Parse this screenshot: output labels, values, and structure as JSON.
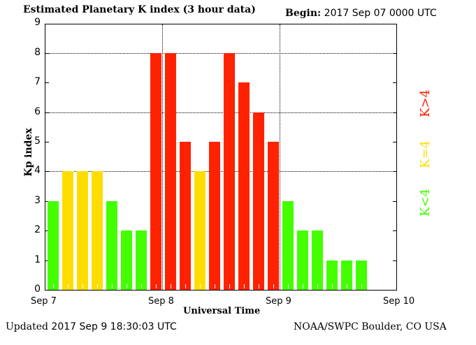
{
  "header": {
    "title": "Estimated Planetary K index (3 hour data)",
    "begin_label": "Begin:",
    "begin_value": "2017 Sep 07 0000 UTC"
  },
  "footer": {
    "updated_label": "Updated",
    "updated_value": "2017 Sep  9 18:30:03 UTC",
    "source": "NOAA/SWPC Boulder, CO USA"
  },
  "legend": {
    "high": {
      "label": "K>4",
      "color": "#ff2200"
    },
    "equal": {
      "label": "K=4",
      "color": "#ffdd00"
    },
    "low": {
      "label": "K<4",
      "color": "#44ff00"
    }
  },
  "chart_data": {
    "type": "bar",
    "title": "Estimated Planetary K index (3 hour data)",
    "xlabel": "Universal Time",
    "ylabel": "Kp index",
    "ylim": [
      0,
      9
    ],
    "yticks": [
      "0",
      "1",
      "2",
      "3",
      "4",
      "5",
      "6",
      "7",
      "8",
      "9"
    ],
    "xticks": [
      "Sep 7",
      "Sep 8",
      "Sep 9",
      "Sep 10"
    ],
    "grid": {
      "horizontal_dotted_at": [
        4,
        6,
        8
      ],
      "vertical_dotted_at": [
        "Sep 8",
        "Sep 9"
      ]
    },
    "interval_hours": 3,
    "categories": [
      "Sep 7 00",
      "Sep 7 03",
      "Sep 7 06",
      "Sep 7 09",
      "Sep 7 12",
      "Sep 7 15",
      "Sep 7 18",
      "Sep 7 21",
      "Sep 8 00",
      "Sep 8 03",
      "Sep 8 06",
      "Sep 8 09",
      "Sep 8 12",
      "Sep 8 15",
      "Sep 8 18",
      "Sep 8 21",
      "Sep 9 00",
      "Sep 9 03",
      "Sep 9 06",
      "Sep 9 09",
      "Sep 9 12",
      "Sep 9 15"
    ],
    "values": [
      3,
      4,
      4,
      4,
      3,
      2,
      2,
      8,
      8,
      5,
      4,
      5,
      8,
      7,
      6,
      5,
      3,
      2,
      2,
      1,
      1,
      1
    ],
    "color_rule": {
      "K<4": "#44ff00",
      "K=4": "#ffdd00",
      "K>4": "#ff2200"
    },
    "legend_position": "right"
  }
}
